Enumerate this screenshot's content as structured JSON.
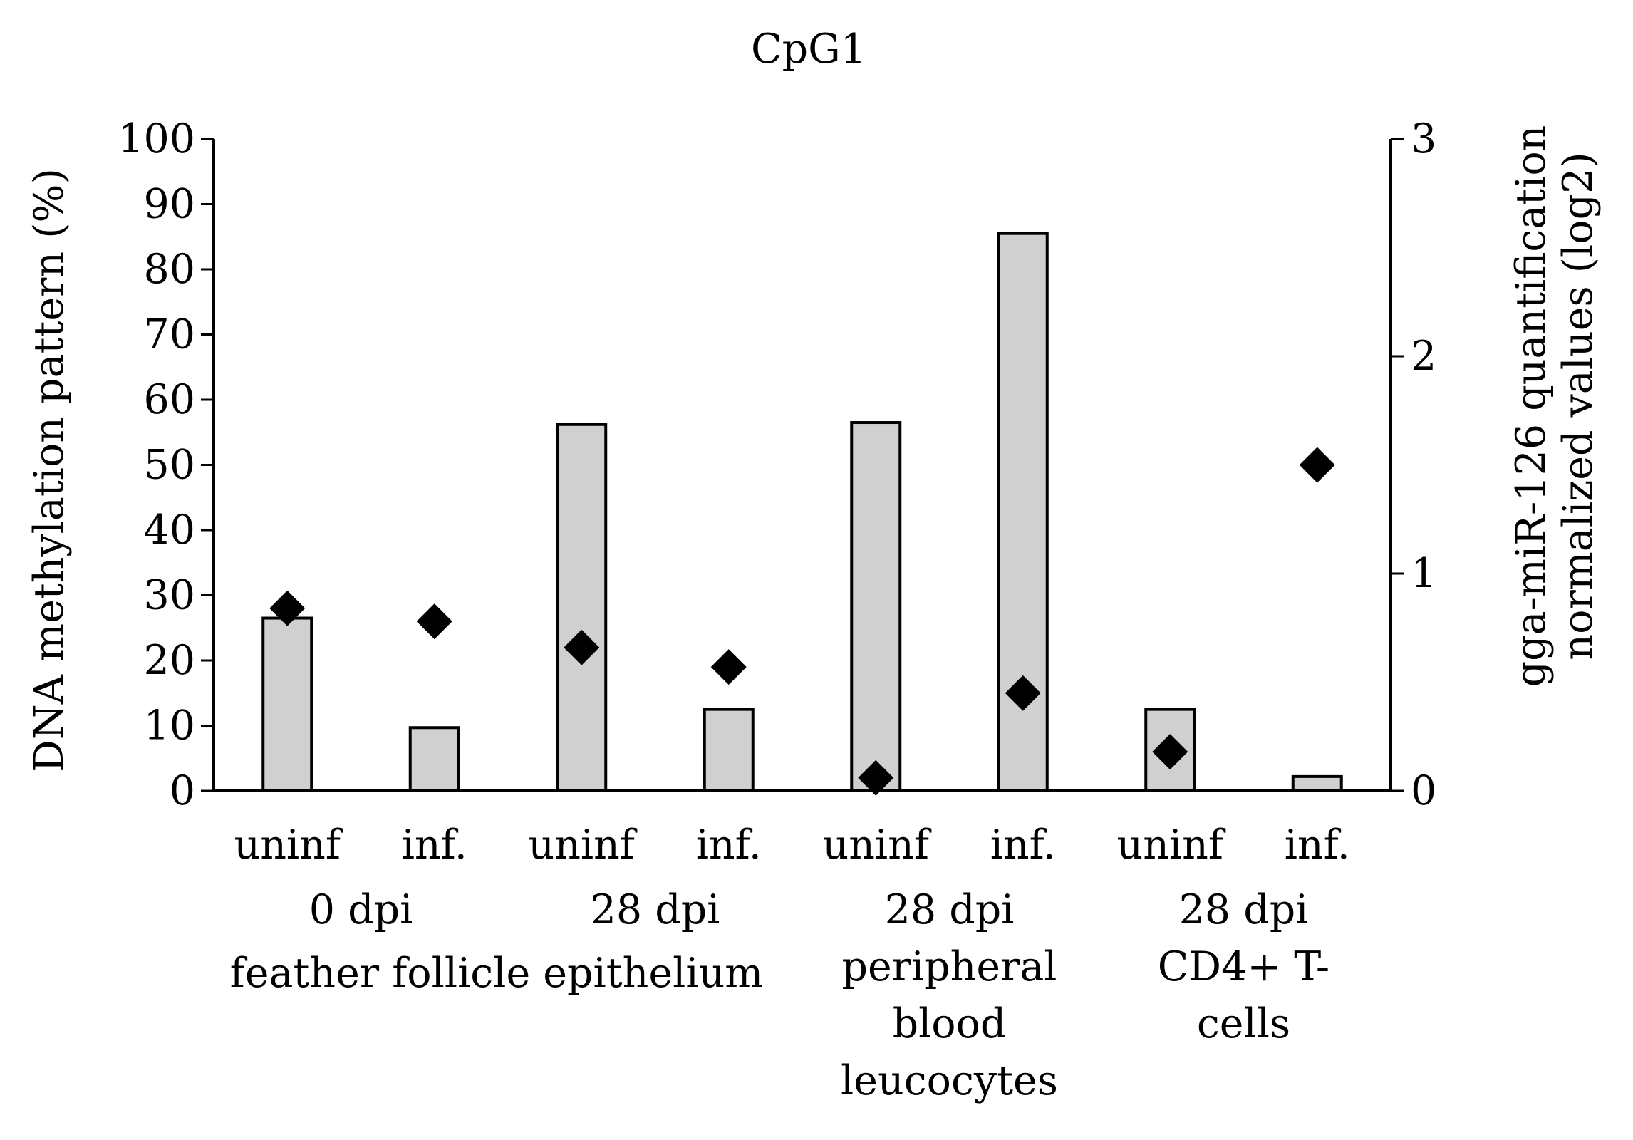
{
  "chart_data": {
    "type": "bar",
    "title": "CpG1",
    "categories": [
      "uninf",
      "inf.",
      "uninf",
      "inf.",
      "uninf",
      "inf.",
      "uninf",
      "inf."
    ],
    "groups": [
      {
        "lines": [
          "0 dpi"
        ]
      },
      {
        "lines": [
          "28 dpi"
        ]
      },
      {
        "lines": [
          "28 dpi",
          "peripheral",
          "blood",
          "leucocytes"
        ]
      },
      {
        "lines": [
          "28 dpi",
          "CD4+ T-",
          "cells"
        ]
      }
    ],
    "feather_label": "feather follicle epithelium",
    "series": [
      {
        "name": "DNA methylation pattern (%)",
        "kind": "bar",
        "axis": "left",
        "color": "#d0d0d0",
        "values": [
          26.5,
          9.7,
          56.2,
          12.5,
          56.5,
          85.5,
          12.5,
          2.2
        ]
      },
      {
        "name": "gga-miR-126 quantification normalized values (log2)",
        "kind": "marker",
        "axis": "right",
        "color": "#000000",
        "values": [
          0.84,
          0.78,
          0.66,
          0.57,
          0.06,
          0.45,
          0.18,
          1.5
        ]
      }
    ],
    "ylabel": "DNA methylation pattern (%)",
    "y2label_lines": [
      "gga-miR-126 quantification",
      "normalized values (log2)"
    ],
    "ylim": [
      0,
      100
    ],
    "yticks": [
      0,
      10,
      20,
      30,
      40,
      50,
      60,
      70,
      80,
      90,
      100
    ],
    "y2lim": [
      0,
      3
    ],
    "y2ticks": [
      0,
      1,
      2,
      3
    ],
    "grid": false
  }
}
